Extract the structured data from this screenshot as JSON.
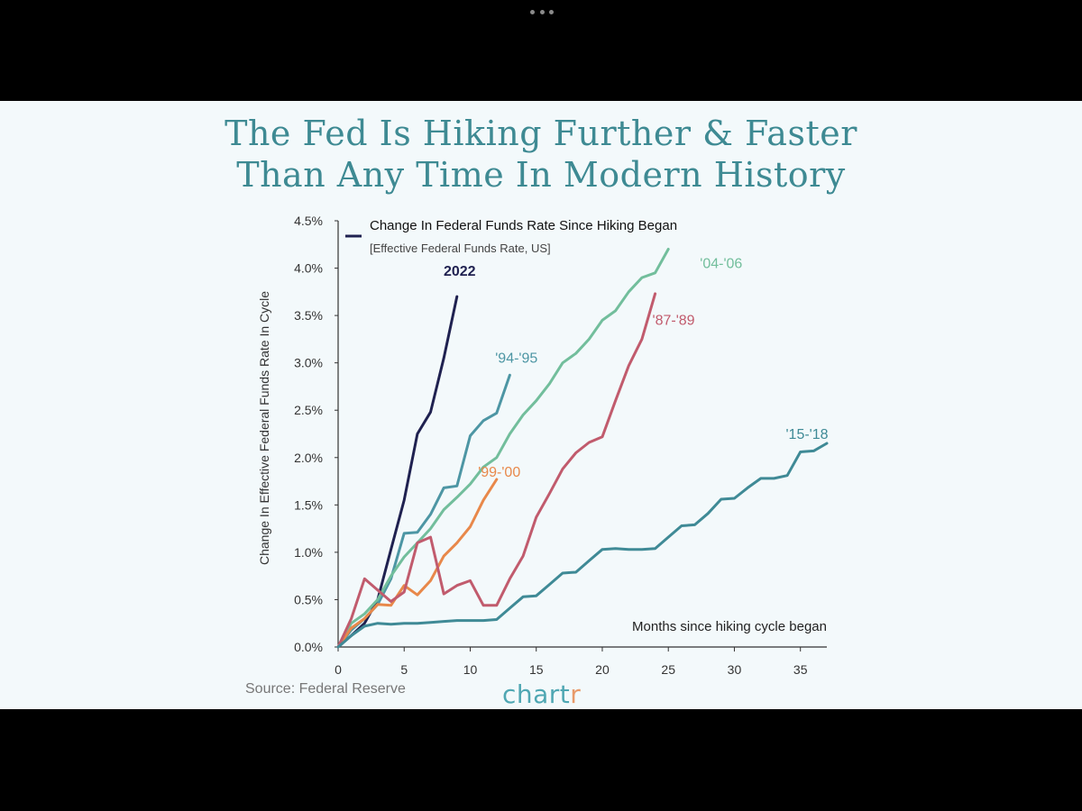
{
  "window": {
    "menu_icon": "more-dots-icon"
  },
  "title_line1": "The Fed Is Hiking Further & Faster",
  "title_line2": "Than Any Time In Modern History",
  "source": "Source: Federal Reserve",
  "brand": {
    "main": "chart",
    "accent": "r"
  },
  "chart_data": {
    "type": "line",
    "legend_title": "Change In Federal Funds Rate Since Hiking Began",
    "legend_subtitle": "[Effective Federal Funds Rate, US]",
    "ylabel": "Change In Effective Federal Funds Rate In Cycle",
    "xlabel": "Months since hiking cycle began",
    "xlim": [
      0,
      37
    ],
    "ylim": [
      0,
      4.5
    ],
    "xticks": [
      0,
      5,
      10,
      15,
      20,
      25,
      30,
      35
    ],
    "yticks": [
      0,
      0.5,
      1.0,
      1.5,
      2.0,
      2.5,
      3.0,
      3.5,
      4.0,
      4.5
    ],
    "ytick_labels": [
      "0.0%",
      "0.5%",
      "1.0%",
      "1.5%",
      "2.0%",
      "2.5%",
      "3.0%",
      "3.5%",
      "4.0%",
      "4.5%"
    ],
    "grid": false,
    "series": [
      {
        "name": "2022",
        "color": "#1f2150",
        "x": [
          0,
          1,
          2,
          3,
          4,
          5,
          6,
          7,
          8,
          9
        ],
        "values": [
          0,
          0.12,
          0.25,
          0.5,
          1.03,
          1.55,
          2.25,
          2.48,
          3.05,
          3.7
        ]
      },
      {
        "name": "'94-'95",
        "color": "#4d96a4",
        "x": [
          0,
          1,
          2,
          3,
          4,
          5,
          6,
          7,
          8,
          9,
          10,
          11,
          12,
          13
        ],
        "values": [
          0,
          0.18,
          0.3,
          0.45,
          0.72,
          1.2,
          1.21,
          1.4,
          1.68,
          1.7,
          2.23,
          2.39,
          2.47,
          2.87
        ]
      },
      {
        "name": "'04-'06",
        "color": "#72be9c",
        "x": [
          0,
          1,
          2,
          3,
          4,
          5,
          6,
          7,
          8,
          9,
          10,
          11,
          12,
          13,
          14,
          15,
          16,
          17,
          18,
          19,
          20,
          21,
          22,
          23,
          24,
          25
        ],
        "values": [
          0,
          0.25,
          0.35,
          0.5,
          0.75,
          0.95,
          1.1,
          1.25,
          1.45,
          1.58,
          1.72,
          1.9,
          2.0,
          2.25,
          2.45,
          2.6,
          2.78,
          3.0,
          3.1,
          3.25,
          3.45,
          3.55,
          3.75,
          3.9,
          3.95,
          4.2
        ]
      },
      {
        "name": "'99-'00",
        "color": "#e8884a",
        "x": [
          0,
          1,
          2,
          3,
          4,
          5,
          6,
          7,
          8,
          9,
          10,
          11,
          12
        ],
        "values": [
          0,
          0.2,
          0.3,
          0.45,
          0.44,
          0.65,
          0.55,
          0.7,
          0.96,
          1.1,
          1.27,
          1.55,
          1.77
        ]
      },
      {
        "name": "'87-'89",
        "color": "#c15b6d",
        "x": [
          0,
          1,
          2,
          3,
          4,
          5,
          6,
          7,
          8,
          9,
          10,
          11,
          12,
          13,
          14,
          15,
          16,
          17,
          18,
          19,
          20,
          21,
          22,
          23,
          24
        ],
        "values": [
          0,
          0.3,
          0.72,
          0.6,
          0.48,
          0.58,
          1.1,
          1.16,
          0.56,
          0.65,
          0.7,
          0.44,
          0.44,
          0.72,
          0.96,
          1.37,
          1.62,
          1.88,
          2.05,
          2.16,
          2.22,
          2.6,
          2.97,
          3.25,
          3.73
        ]
      },
      {
        "name": "'15-'18",
        "color": "#3f8a96",
        "x": [
          0,
          1,
          2,
          3,
          4,
          5,
          6,
          7,
          8,
          9,
          10,
          11,
          12,
          13,
          14,
          15,
          16,
          17,
          18,
          19,
          20,
          21,
          22,
          23,
          24,
          25,
          26,
          27,
          28,
          29,
          30,
          31,
          32,
          33,
          34,
          35,
          36,
          37
        ],
        "values": [
          0,
          0.12,
          0.22,
          0.25,
          0.24,
          0.25,
          0.25,
          0.26,
          0.27,
          0.28,
          0.28,
          0.28,
          0.29,
          0.41,
          0.53,
          0.54,
          0.66,
          0.78,
          0.79,
          0.91,
          1.03,
          1.04,
          1.03,
          1.03,
          1.04,
          1.16,
          1.28,
          1.29,
          1.41,
          1.56,
          1.57,
          1.68,
          1.78,
          1.78,
          1.81,
          2.06,
          2.07,
          2.15
        ]
      }
    ],
    "labels": [
      {
        "text": "2022",
        "color": "#1f2150",
        "x": 9.2,
        "y": 3.92,
        "bold": true
      },
      {
        "text": "'94-'95",
        "color": "#4d96a4",
        "x": 13.5,
        "y": 3.0
      },
      {
        "text": "'04-'06",
        "color": "#72be9c",
        "x": 29.0,
        "y": 4.0
      },
      {
        "text": "'87-'89",
        "color": "#c15b6d",
        "x": 25.4,
        "y": 3.4
      },
      {
        "text": "'99-'00",
        "color": "#e8884a",
        "x": 12.2,
        "y": 1.8
      },
      {
        "text": "'15-'18",
        "color": "#3f8a96",
        "x": 35.5,
        "y": 2.2
      }
    ]
  }
}
